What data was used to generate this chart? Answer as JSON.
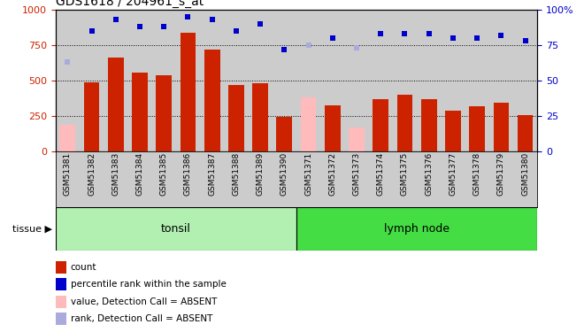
{
  "title": "GDS1618 / 204961_s_at",
  "samples": [
    "GSM51381",
    "GSM51382",
    "GSM51383",
    "GSM51384",
    "GSM51385",
    "GSM51386",
    "GSM51387",
    "GSM51388",
    "GSM51389",
    "GSM51390",
    "GSM51371",
    "GSM51372",
    "GSM51373",
    "GSM51374",
    "GSM51375",
    "GSM51376",
    "GSM51377",
    "GSM51378",
    "GSM51379",
    "GSM51380"
  ],
  "bar_values": [
    185,
    490,
    665,
    555,
    540,
    840,
    720,
    470,
    480,
    245,
    380,
    325,
    170,
    370,
    400,
    370,
    285,
    315,
    340,
    255
  ],
  "bar_absent": [
    true,
    false,
    false,
    false,
    false,
    false,
    false,
    false,
    false,
    false,
    true,
    false,
    true,
    false,
    false,
    false,
    false,
    false,
    false,
    false
  ],
  "rank_values": [
    63,
    85,
    93,
    88,
    88,
    95,
    93,
    85,
    90,
    72,
    75,
    80,
    73,
    83,
    83,
    83,
    80,
    80,
    82,
    78
  ],
  "rank_absent": [
    true,
    false,
    false,
    false,
    false,
    false,
    false,
    false,
    false,
    false,
    true,
    false,
    true,
    false,
    false,
    false,
    false,
    false,
    false,
    false
  ],
  "group_labels": [
    "tonsil",
    "lymph node"
  ],
  "group_counts": [
    10,
    10
  ],
  "group_colors": [
    "#b2f0b2",
    "#44dd44"
  ],
  "bar_color_present": "#cc2200",
  "bar_color_absent": "#ffbbbb",
  "rank_color_present": "#0000cc",
  "rank_color_absent": "#aaaadd",
  "ylim_left": [
    0,
    1000
  ],
  "ylim_right": [
    0,
    100
  ],
  "yticks_left": [
    0,
    250,
    500,
    750,
    1000
  ],
  "yticks_right": [
    0,
    25,
    50,
    75,
    100
  ],
  "ylabel_left_color": "#cc2200",
  "ylabel_right_color": "#0000cc",
  "background_color": "#cccccc",
  "tissue_label": "tissue",
  "legend_items": [
    {
      "label": "count",
      "color": "#cc2200"
    },
    {
      "label": "percentile rank within the sample",
      "color": "#0000cc"
    },
    {
      "label": "value, Detection Call = ABSENT",
      "color": "#ffbbbb"
    },
    {
      "label": "rank, Detection Call = ABSENT",
      "color": "#aaaadd"
    }
  ]
}
